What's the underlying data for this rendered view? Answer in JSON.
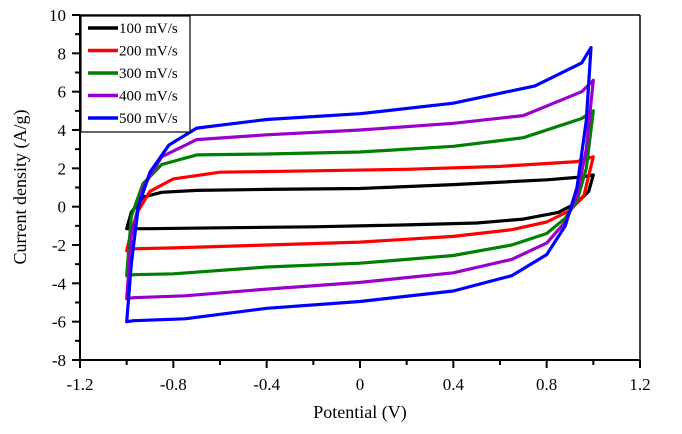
{
  "chart_data": {
    "type": "line",
    "title": "",
    "xlabel": "Potential (V)",
    "ylabel": "Current density (A/g)",
    "xlim": [
      -1.2,
      1.2
    ],
    "ylim": [
      -8,
      10
    ],
    "xticks": [
      -1.2,
      -0.8,
      -0.4,
      0,
      0.4,
      0.8,
      1.2
    ],
    "xtick_labels": [
      "-1.2",
      "-0.8",
      "-0.4",
      "0",
      "0.4",
      "0.8",
      "1.2"
    ],
    "yticks": [
      -8,
      -6,
      -4,
      -2,
      0,
      2,
      4,
      6,
      8,
      10
    ],
    "ytick_labels": [
      "-8",
      "-6",
      "-4",
      "-2",
      "0",
      "2",
      "4",
      "6",
      "8",
      "10"
    ],
    "grid": false,
    "legend_position": "top-left",
    "series": [
      {
        "name": "100 mV/s",
        "color": "#000000",
        "points": [
          [
            -1.0,
            -1.15
          ],
          [
            -0.9,
            -1.15
          ],
          [
            -0.6,
            -1.1
          ],
          [
            -0.2,
            -1.05
          ],
          [
            0.2,
            -0.95
          ],
          [
            0.5,
            -0.85
          ],
          [
            0.7,
            -0.65
          ],
          [
            0.85,
            -0.3
          ],
          [
            0.93,
            0.2
          ],
          [
            0.98,
            0.8
          ],
          [
            1.0,
            1.65
          ],
          [
            0.95,
            1.55
          ],
          [
            0.8,
            1.4
          ],
          [
            0.4,
            1.15
          ],
          [
            0.0,
            0.95
          ],
          [
            -0.4,
            0.9
          ],
          [
            -0.7,
            0.85
          ],
          [
            -0.85,
            0.75
          ],
          [
            -0.93,
            0.5
          ],
          [
            -0.98,
            -0.3
          ],
          [
            -1.0,
            -1.15
          ]
        ]
      },
      {
        "name": "200 mV/s",
        "color": "#ff0000",
        "points": [
          [
            -1.0,
            -2.3
          ],
          [
            -0.97,
            -2.2
          ],
          [
            -0.8,
            -2.15
          ],
          [
            -0.4,
            -2.0
          ],
          [
            0.0,
            -1.85
          ],
          [
            0.4,
            -1.55
          ],
          [
            0.65,
            -1.2
          ],
          [
            0.8,
            -0.8
          ],
          [
            0.9,
            -0.2
          ],
          [
            0.96,
            0.6
          ],
          [
            1.0,
            2.6
          ],
          [
            0.93,
            2.35
          ],
          [
            0.6,
            2.1
          ],
          [
            0.2,
            1.95
          ],
          [
            -0.3,
            1.85
          ],
          [
            -0.6,
            1.8
          ],
          [
            -0.8,
            1.45
          ],
          [
            -0.9,
            0.8
          ],
          [
            -0.95,
            -0.2
          ],
          [
            -0.98,
            -1.3
          ],
          [
            -1.0,
            -2.3
          ]
        ]
      },
      {
        "name": "300 mV/s",
        "color": "#008000",
        "points": [
          [
            -1.0,
            -3.6
          ],
          [
            -0.97,
            -3.55
          ],
          [
            -0.8,
            -3.5
          ],
          [
            -0.4,
            -3.15
          ],
          [
            0.0,
            -2.95
          ],
          [
            0.4,
            -2.55
          ],
          [
            0.65,
            -2.0
          ],
          [
            0.8,
            -1.4
          ],
          [
            0.88,
            -0.6
          ],
          [
            0.93,
            0.3
          ],
          [
            0.97,
            2.0
          ],
          [
            1.0,
            5.0
          ],
          [
            0.95,
            4.6
          ],
          [
            0.7,
            3.6
          ],
          [
            0.4,
            3.15
          ],
          [
            0.0,
            2.85
          ],
          [
            -0.4,
            2.75
          ],
          [
            -0.7,
            2.7
          ],
          [
            -0.85,
            2.2
          ],
          [
            -0.93,
            1.2
          ],
          [
            -0.98,
            -0.5
          ],
          [
            -1.0,
            -3.6
          ]
        ]
      },
      {
        "name": "400 mV/s",
        "color": "#9900cc",
        "points": [
          [
            -1.0,
            -4.8
          ],
          [
            -0.97,
            -4.75
          ],
          [
            -0.75,
            -4.65
          ],
          [
            -0.4,
            -4.3
          ],
          [
            0.0,
            -3.95
          ],
          [
            0.4,
            -3.45
          ],
          [
            0.65,
            -2.75
          ],
          [
            0.8,
            -1.9
          ],
          [
            0.88,
            -0.8
          ],
          [
            0.93,
            0.6
          ],
          [
            0.97,
            3.0
          ],
          [
            1.0,
            6.6
          ],
          [
            0.95,
            6.0
          ],
          [
            0.7,
            4.75
          ],
          [
            0.4,
            4.35
          ],
          [
            0.0,
            4.0
          ],
          [
            -0.4,
            3.75
          ],
          [
            -0.7,
            3.5
          ],
          [
            -0.85,
            2.6
          ],
          [
            -0.93,
            1.0
          ],
          [
            -0.98,
            -1.5
          ],
          [
            -1.0,
            -4.8
          ]
        ]
      },
      {
        "name": "500 mV/s",
        "color": "#0000ff",
        "points": [
          [
            -1.0,
            -6.0
          ],
          [
            -0.97,
            -5.95
          ],
          [
            -0.75,
            -5.85
          ],
          [
            -0.4,
            -5.3
          ],
          [
            0.0,
            -4.95
          ],
          [
            0.4,
            -4.4
          ],
          [
            0.65,
            -3.6
          ],
          [
            0.8,
            -2.5
          ],
          [
            0.88,
            -1.0
          ],
          [
            0.93,
            1.0
          ],
          [
            0.97,
            4.5
          ],
          [
            0.99,
            8.3
          ],
          [
            0.95,
            7.5
          ],
          [
            0.75,
            6.3
          ],
          [
            0.4,
            5.4
          ],
          [
            0.0,
            4.85
          ],
          [
            -0.4,
            4.55
          ],
          [
            -0.7,
            4.1
          ],
          [
            -0.82,
            3.2
          ],
          [
            -0.9,
            1.8
          ],
          [
            -0.95,
            0.0
          ],
          [
            -0.98,
            -3.0
          ],
          [
            -1.0,
            -6.0
          ]
        ]
      }
    ]
  }
}
